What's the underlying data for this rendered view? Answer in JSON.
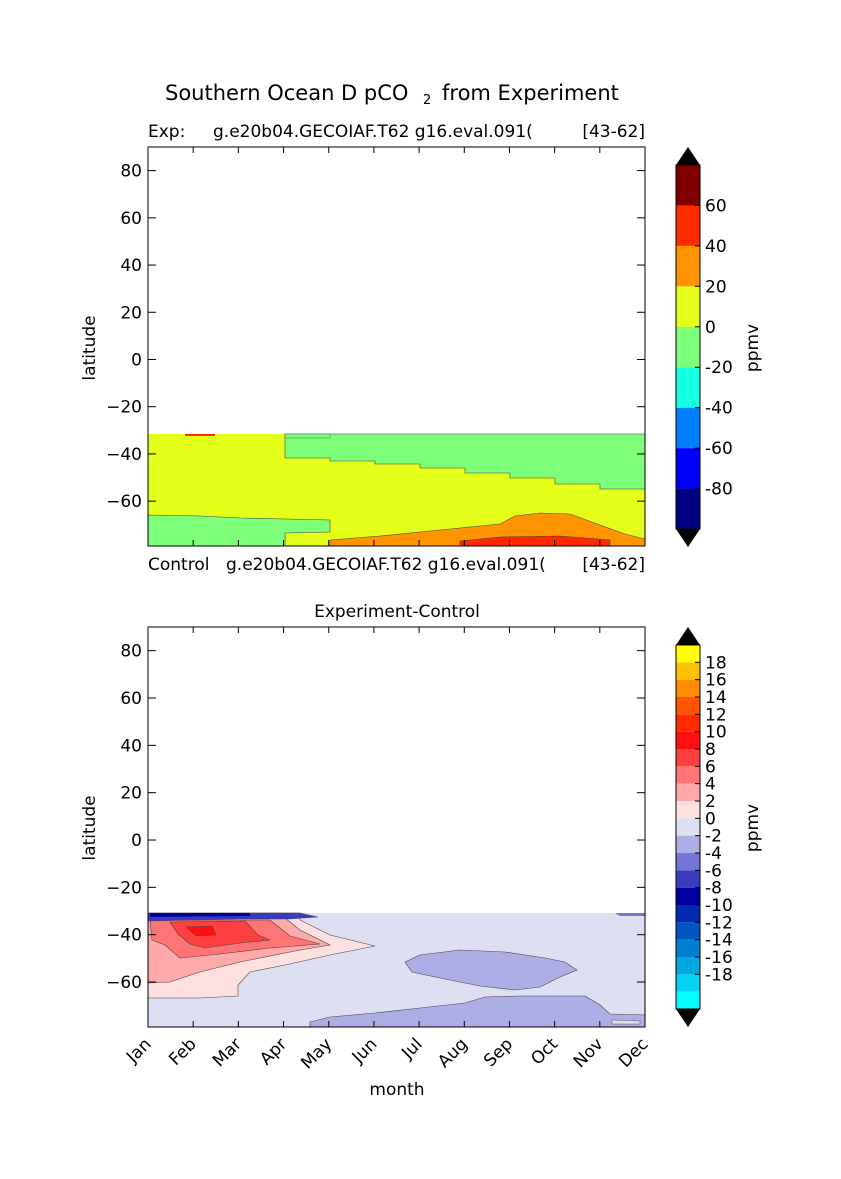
{
  "figure": {
    "title_main": "Southern Ocean D pCO",
    "title_sub": "2",
    "title_tail": "from Experiment"
  },
  "chart_data": [
    {
      "type": "heatmap",
      "panel": "top",
      "title_left": "Exp:",
      "title_center": "g.e20b04.GECOIAF.T62 g16.eval.091(",
      "title_right": "[43-62]",
      "bottom_left": "Control",
      "bottom_center": "g.e20b04.GECOIAF.T62 g16.eval.091(",
      "bottom_right": "[43-62]",
      "ylabel": "latitude",
      "yticks": [
        "80",
        "60",
        "40",
        "20",
        "0",
        "−20",
        "−40",
        "−60"
      ],
      "ytick_values": [
        80,
        60,
        40,
        20,
        0,
        -20,
        -40,
        -60
      ],
      "ylim": [
        -79,
        90
      ],
      "xlim": [
        0,
        11
      ],
      "data_lat_max": -31,
      "colorbar": {
        "label": "ppmv",
        "tick_labels": [
          "60",
          "40",
          "20",
          "0",
          "-20",
          "-40",
          "-60",
          "-80"
        ],
        "levels": [
          -100,
          -80,
          -60,
          -40,
          -20,
          0,
          20,
          40,
          60,
          80
        ],
        "colors": [
          "#000080",
          "#0000ff",
          "#0080ff",
          "#15ffe1",
          "#7dff7a",
          "#e4ff1a",
          "#ff9400",
          "#ff2a00",
          "#800000"
        ]
      },
      "regions": [
        {
          "level_range": "0 to 20",
          "description": "most of domain"
        },
        {
          "level_range": "-20 to 0",
          "description": "north of ~-45 from May to Dec, and south of ~-66 Jan-May"
        },
        {
          "level_range": "20 to 40",
          "description": "south of ~-65 from Aug to Dec"
        },
        {
          "level_range": "40 to 60",
          "description": "near -78 from Aug to Oct"
        }
      ]
    },
    {
      "type": "heatmap",
      "panel": "bottom",
      "title": "Experiment-Control",
      "ylabel": "latitude",
      "xlabel": "month",
      "yticks": [
        "80",
        "60",
        "40",
        "20",
        "0",
        "−20",
        "−40",
        "−60"
      ],
      "ytick_values": [
        80,
        60,
        40,
        20,
        0,
        -20,
        -40,
        -60
      ],
      "xticks": [
        "Jan",
        "Feb",
        "Mar",
        "Apr",
        "May",
        "Jun",
        "Jul",
        "Aug",
        "Sep",
        "Oct",
        "Nov",
        "Dec"
      ],
      "ylim": [
        -79,
        90
      ],
      "xlim": [
        0,
        11
      ],
      "data_lat_max": -31,
      "colorbar": {
        "label": "ppmv",
        "tick_labels": [
          "18",
          "16",
          "14",
          "12",
          "10",
          "8",
          "6",
          "4",
          "2",
          "0",
          "-2",
          "-4",
          "-6",
          "-8",
          "-10",
          "-12",
          "-14",
          "-16",
          "-18"
        ],
        "levels": [
          -20,
          -18,
          -16,
          -14,
          -12,
          -10,
          -8,
          -6,
          -4,
          -2,
          0,
          2,
          4,
          6,
          8,
          10,
          12,
          14,
          16,
          18,
          20
        ],
        "colors": [
          "#00ffff",
          "#00d2f0",
          "#00a8e0",
          "#007ed0",
          "#0055c0",
          "#002bb0",
          "#0000a0",
          "#3a3abf",
          "#7575d5",
          "#aeaee6",
          "#dfdff4",
          "#ffe0e0",
          "#ffaaaa",
          "#ff7575",
          "#ff4040",
          "#ff1010",
          "#ff2a00",
          "#ff5500",
          "#ff8c00",
          "#ffc000",
          "#ffff00"
        ]
      },
      "regions": [
        {
          "level_range": "-2 to 0",
          "description": "background over most of domain"
        },
        {
          "level_range": "0 to 8",
          "description": "Jan-May positive anomaly between -33 and -70"
        },
        {
          "level_range": "-4 to -2",
          "description": "Jul-Oct near -50 to -62 and May-Dec south of -65"
        },
        {
          "level_range": "-10 to -4",
          "description": "thin band near -31 Jan-Apr"
        }
      ]
    }
  ]
}
